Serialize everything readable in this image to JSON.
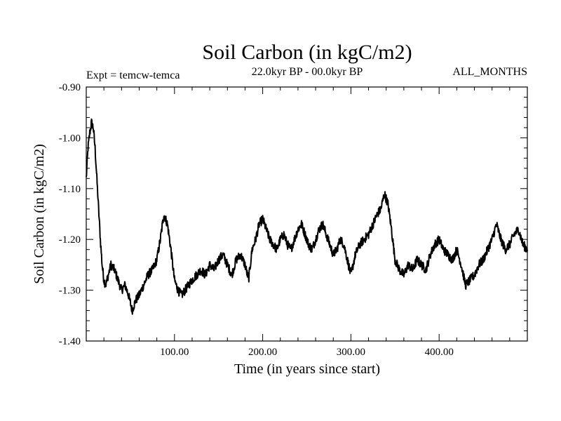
{
  "chart_data": {
    "type": "line",
    "title": "Soil Carbon (in kgC/m2)",
    "subtitle": "22.0kyr BP - 00.0kyr BP",
    "left_label": "Expt = temcw-temca",
    "right_label": "ALL_MONTHS",
    "xlabel": "Time (in years since start)",
    "ylabel": "Soil Carbon (in kgC/m2)",
    "xlim": [
      0,
      500
    ],
    "ylim": [
      -1.4,
      -0.9
    ],
    "xticks": [
      100,
      200,
      300,
      400
    ],
    "xtick_labels": [
      "100.00",
      "200.00",
      "300.00",
      "400.00"
    ],
    "yticks": [
      -0.9,
      -1.0,
      -1.1,
      -1.2,
      -1.3,
      -1.4
    ],
    "ytick_labels": [
      "-0.90",
      "-1.00",
      "-1.10",
      "-1.20",
      "-1.30",
      "-1.40"
    ],
    "grid": false,
    "line_color": "#000000",
    "series": [
      {
        "name": "temcw-temca",
        "x": [
          0,
          2,
          4,
          6,
          8,
          10,
          12,
          14,
          16,
          18,
          20,
          22,
          25,
          28,
          32,
          36,
          40,
          44,
          48,
          52,
          56,
          60,
          65,
          70,
          75,
          80,
          84,
          88,
          92,
          96,
          100,
          104,
          108,
          112,
          116,
          120,
          125,
          130,
          135,
          140,
          145,
          150,
          155,
          160,
          165,
          170,
          175,
          180,
          184,
          188,
          192,
          196,
          200,
          204,
          208,
          212,
          216,
          220,
          224,
          228,
          232,
          236,
          240,
          244,
          248,
          252,
          256,
          260,
          264,
          268,
          272,
          276,
          280,
          284,
          288,
          292,
          296,
          300,
          305,
          310,
          315,
          320,
          325,
          330,
          334,
          338,
          342,
          346,
          350,
          355,
          360,
          365,
          370,
          375,
          380,
          385,
          390,
          395,
          400,
          405,
          410,
          415,
          420,
          425,
          430,
          435,
          440,
          445,
          450,
          455,
          460,
          465,
          470,
          475,
          480,
          485,
          490,
          495,
          500
        ],
        "values": [
          -1.08,
          -1.02,
          -0.99,
          -0.97,
          -0.98,
          -1.02,
          -1.08,
          -1.14,
          -1.2,
          -1.25,
          -1.28,
          -1.29,
          -1.27,
          -1.25,
          -1.26,
          -1.28,
          -1.3,
          -1.29,
          -1.31,
          -1.34,
          -1.32,
          -1.31,
          -1.29,
          -1.27,
          -1.26,
          -1.24,
          -1.2,
          -1.15,
          -1.17,
          -1.22,
          -1.28,
          -1.3,
          -1.31,
          -1.3,
          -1.29,
          -1.28,
          -1.27,
          -1.26,
          -1.27,
          -1.25,
          -1.26,
          -1.24,
          -1.23,
          -1.25,
          -1.27,
          -1.24,
          -1.23,
          -1.25,
          -1.28,
          -1.22,
          -1.2,
          -1.17,
          -1.16,
          -1.18,
          -1.2,
          -1.21,
          -1.22,
          -1.2,
          -1.19,
          -1.21,
          -1.22,
          -1.2,
          -1.18,
          -1.17,
          -1.19,
          -1.21,
          -1.22,
          -1.2,
          -1.18,
          -1.17,
          -1.19,
          -1.21,
          -1.23,
          -1.22,
          -1.2,
          -1.21,
          -1.24,
          -1.27,
          -1.23,
          -1.21,
          -1.2,
          -1.19,
          -1.17,
          -1.15,
          -1.14,
          -1.11,
          -1.13,
          -1.18,
          -1.24,
          -1.26,
          -1.27,
          -1.25,
          -1.26,
          -1.24,
          -1.25,
          -1.26,
          -1.23,
          -1.21,
          -1.2,
          -1.22,
          -1.23,
          -1.24,
          -1.22,
          -1.25,
          -1.29,
          -1.28,
          -1.27,
          -1.25,
          -1.24,
          -1.22,
          -1.2,
          -1.17,
          -1.2,
          -1.22,
          -1.21,
          -1.19,
          -1.18,
          -1.21,
          -1.22
        ]
      }
    ]
  }
}
